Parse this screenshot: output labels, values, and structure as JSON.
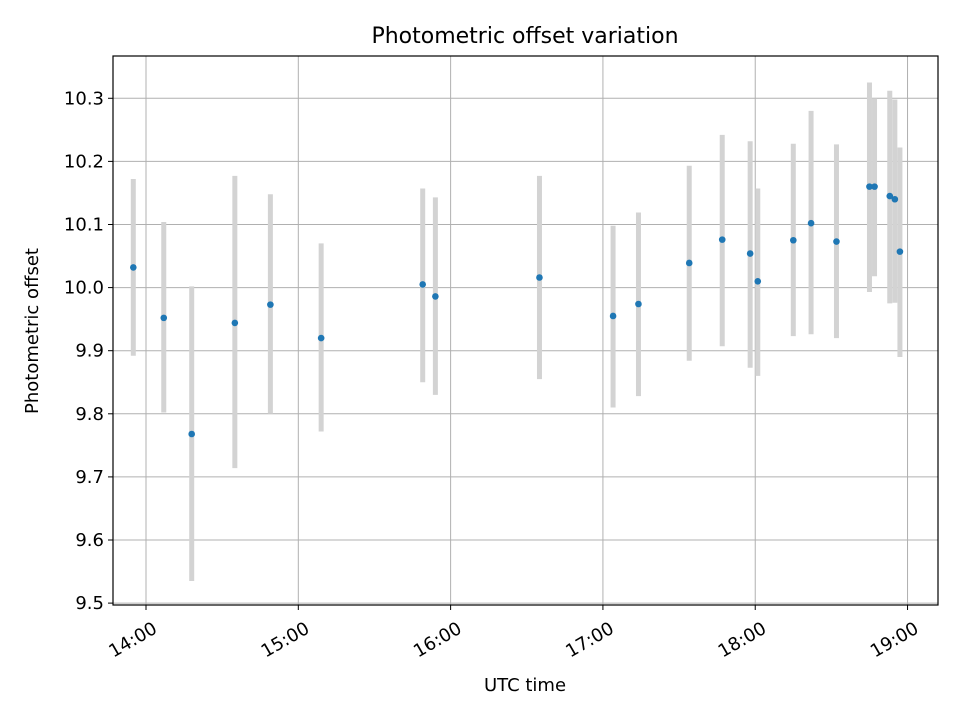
{
  "chart_data": {
    "type": "scatter",
    "title": "Photometric offset variation",
    "xlabel": "UTC time",
    "ylabel": "Photometric offset",
    "x_unit": "time of day (UTC, HH:MM)",
    "xlim": [
      "13:47",
      "19:12"
    ],
    "ylim": [
      9.497,
      10.367
    ],
    "x_ticks": [
      "14:00",
      "15:00",
      "16:00",
      "17:00",
      "18:00",
      "19:00"
    ],
    "y_ticks": [
      "9.5",
      "9.6",
      "9.7",
      "9.8",
      "9.9",
      "10.0",
      "10.1",
      "10.2",
      "10.3"
    ],
    "grid": true,
    "x_tick_label_rotation": "30",
    "point_color": "#1f77b4",
    "errorbar_color": "#d3d3d3",
    "series": [
      {
        "points": [
          {
            "x": "13:55",
            "y": 10.032,
            "ylow": 9.892,
            "yhigh": 10.172
          },
          {
            "x": "14:07",
            "y": 9.952,
            "ylow": 9.802,
            "yhigh": 10.104
          },
          {
            "x": "14:18",
            "y": 9.768,
            "ylow": 9.535,
            "yhigh": 10.002
          },
          {
            "x": "14:35",
            "y": 9.944,
            "ylow": 9.714,
            "yhigh": 10.177
          },
          {
            "x": "14:49",
            "y": 9.973,
            "ylow": 9.8,
            "yhigh": 10.148
          },
          {
            "x": "15:09",
            "y": 9.92,
            "ylow": 9.772,
            "yhigh": 10.07
          },
          {
            "x": "15:49",
            "y": 10.005,
            "ylow": 9.85,
            "yhigh": 10.157
          },
          {
            "x": "15:54",
            "y": 9.986,
            "ylow": 9.83,
            "yhigh": 10.143
          },
          {
            "x": "16:35",
            "y": 10.016,
            "ylow": 9.855,
            "yhigh": 10.177
          },
          {
            "x": "17:04",
            "y": 9.955,
            "ylow": 9.81,
            "yhigh": 10.098
          },
          {
            "x": "17:14",
            "y": 9.974,
            "ylow": 9.828,
            "yhigh": 10.119
          },
          {
            "x": "17:34",
            "y": 10.039,
            "ylow": 9.884,
            "yhigh": 10.193
          },
          {
            "x": "17:47",
            "y": 10.076,
            "ylow": 9.907,
            "yhigh": 10.242
          },
          {
            "x": "17:58",
            "y": 10.054,
            "ylow": 9.873,
            "yhigh": 10.232
          },
          {
            "x": "18:01",
            "y": 10.01,
            "ylow": 9.86,
            "yhigh": 10.157
          },
          {
            "x": "18:15",
            "y": 10.075,
            "ylow": 9.923,
            "yhigh": 10.228
          },
          {
            "x": "18:22",
            "y": 10.102,
            "ylow": 9.926,
            "yhigh": 10.28
          },
          {
            "x": "18:32",
            "y": 10.073,
            "ylow": 9.92,
            "yhigh": 10.227
          },
          {
            "x": "18:45",
            "y": 10.16,
            "ylow": 9.993,
            "yhigh": 10.325
          },
          {
            "x": "18:47",
            "y": 10.16,
            "ylow": 10.018,
            "yhigh": 10.3
          },
          {
            "x": "18:53",
            "y": 10.145,
            "ylow": 9.975,
            "yhigh": 10.312
          },
          {
            "x": "18:55",
            "y": 10.14,
            "ylow": 9.976,
            "yhigh": 10.298
          },
          {
            "x": "18:57",
            "y": 10.057,
            "ylow": 9.89,
            "yhigh": 10.222
          }
        ]
      }
    ]
  }
}
